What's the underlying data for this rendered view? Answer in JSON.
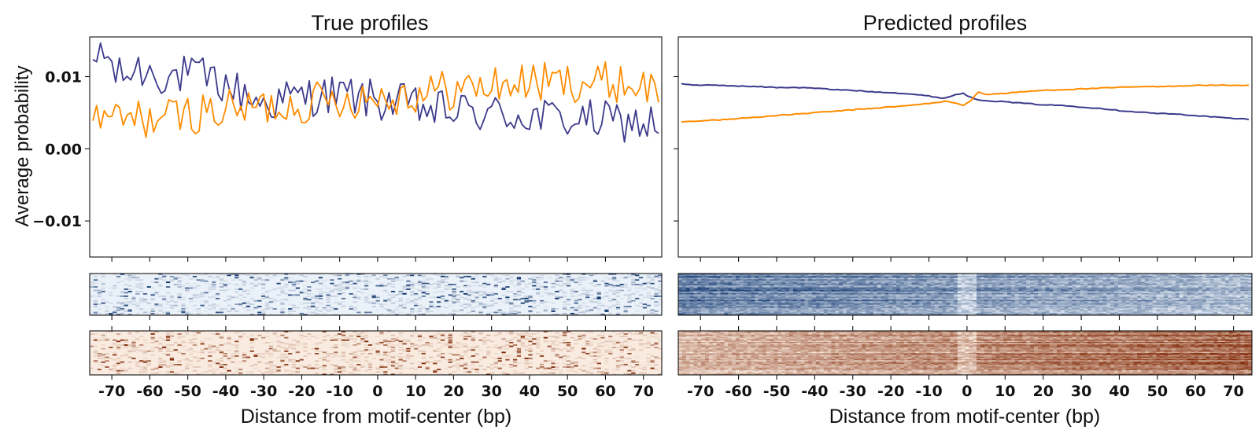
{
  "chart_data": {
    "type": "line",
    "ylabel": "Average probability",
    "xlabel": "Distance from motif-center (bp)",
    "x_range": [
      -75,
      74
    ],
    "ylim": [
      -0.015,
      0.0155
    ],
    "yticks": [
      0.01,
      0.0,
      -0.01
    ],
    "ytick_labels": [
      "0.01",
      "0.00",
      "−0.01"
    ],
    "xticks": [
      -70,
      -60,
      -50,
      -40,
      -30,
      -20,
      -10,
      0,
      10,
      20,
      30,
      40,
      50,
      60,
      70
    ],
    "xtick_labels": [
      "-70",
      "-60",
      "-50",
      "-40",
      "-30",
      "-20",
      "-10",
      "0",
      "10",
      "20",
      "30",
      "40",
      "50",
      "60",
      "70"
    ],
    "colors": {
      "series_blue": "#3d3a8c",
      "series_orange": "#ff8c00",
      "heatmap_blue": "#08306b",
      "heatmap_orange": "#7f2704"
    },
    "panels": [
      {
        "title": "True profiles",
        "series": [
          {
            "name": "blue strand",
            "color": "#3d3a8c",
            "anchors": [
              [
                -75,
                0.0098
              ],
              [
                -73,
                0.0143
              ],
              [
                -71,
                0.0122
              ],
              [
                -68,
                0.0098
              ],
              [
                -64,
                0.011
              ],
              [
                -60,
                0.0108
              ],
              [
                -55,
                0.01
              ],
              [
                -50,
                0.0102
              ],
              [
                -45,
                0.0098
              ],
              [
                -41,
                0.009
              ],
              [
                -38,
                0.0083
              ],
              [
                -35,
                0.0075
              ],
              [
                -30,
                0.0063
              ],
              [
                -25,
                0.0068
              ],
              [
                -20,
                0.0072
              ],
              [
                -15,
                0.0075
              ],
              [
                -10,
                0.0074
              ],
              [
                -5,
                0.0072
              ],
              [
                0,
                0.0066
              ],
              [
                5,
                0.0064
              ],
              [
                10,
                0.0058
              ],
              [
                15,
                0.0052
              ],
              [
                20,
                0.0052
              ],
              [
                25,
                0.005
              ],
              [
                30,
                0.0048
              ],
              [
                35,
                0.0047
              ],
              [
                40,
                0.0045
              ],
              [
                45,
                0.0043
              ],
              [
                50,
                0.0041
              ],
              [
                55,
                0.004
              ],
              [
                60,
                0.0038
              ],
              [
                65,
                0.0037
              ],
              [
                70,
                0.0035
              ],
              [
                74,
                0.0034
              ]
            ]
          },
          {
            "name": "orange strand",
            "color": "#ff8c00",
            "anchors": [
              [
                -75,
                0.0038
              ],
              [
                -70,
                0.004
              ],
              [
                -65,
                0.004
              ],
              [
                -60,
                0.0042
              ],
              [
                -55,
                0.0043
              ],
              [
                -50,
                0.0048
              ],
              [
                -45,
                0.0052
              ],
              [
                -40,
                0.0053
              ],
              [
                -35,
                0.0055
              ],
              [
                -30,
                0.0058
              ],
              [
                -25,
                0.006
              ],
              [
                -20,
                0.0063
              ],
              [
                -15,
                0.0066
              ],
              [
                -10,
                0.0069
              ],
              [
                -5,
                0.0071
              ],
              [
                0,
                0.0072
              ],
              [
                5,
                0.0075
              ],
              [
                10,
                0.0077
              ],
              [
                15,
                0.008
              ],
              [
                20,
                0.0082
              ],
              [
                25,
                0.0084
              ],
              [
                30,
                0.0088
              ],
              [
                35,
                0.009
              ],
              [
                40,
                0.0092
              ],
              [
                45,
                0.0092
              ],
              [
                50,
                0.0093
              ],
              [
                55,
                0.0093
              ],
              [
                60,
                0.0092
              ],
              [
                65,
                0.0091
              ],
              [
                70,
                0.0088
              ],
              [
                74,
                0.008
              ]
            ]
          }
        ]
      },
      {
        "title": "Predicted profiles",
        "series": [
          {
            "name": "blue strand",
            "color": "#3d3a8c",
            "anchors": [
              [
                -75,
                0.009
              ],
              [
                -70,
                0.0088
              ],
              [
                -65,
                0.0088
              ],
              [
                -60,
                0.0087
              ],
              [
                -55,
                0.0086
              ],
              [
                -50,
                0.0085
              ],
              [
                -45,
                0.0085
              ],
              [
                -40,
                0.0084
              ],
              [
                -35,
                0.0082
              ],
              [
                -30,
                0.0081
              ],
              [
                -25,
                0.0079
              ],
              [
                -20,
                0.0078
              ],
              [
                -15,
                0.0076
              ],
              [
                -10,
                0.0073
              ],
              [
                -6,
                0.007
              ],
              [
                -3,
                0.0075
              ],
              [
                -1,
                0.0077
              ],
              [
                1,
                0.0071
              ],
              [
                3,
                0.0068
              ],
              [
                5,
                0.0067
              ],
              [
                10,
                0.0065
              ],
              [
                15,
                0.0063
              ],
              [
                20,
                0.0061
              ],
              [
                25,
                0.006
              ],
              [
                30,
                0.0058
              ],
              [
                35,
                0.0056
              ],
              [
                40,
                0.0053
              ],
              [
                45,
                0.0051
              ],
              [
                50,
                0.0049
              ],
              [
                55,
                0.0048
              ],
              [
                60,
                0.0046
              ],
              [
                65,
                0.0044
              ],
              [
                70,
                0.0042
              ],
              [
                74,
                0.0041
              ]
            ]
          },
          {
            "name": "orange strand",
            "color": "#ff8c00",
            "anchors": [
              [
                -75,
                0.0037
              ],
              [
                -70,
                0.0039
              ],
              [
                -65,
                0.004
              ],
              [
                -60,
                0.0042
              ],
              [
                -55,
                0.0044
              ],
              [
                -50,
                0.0046
              ],
              [
                -45,
                0.0048
              ],
              [
                -40,
                0.005
              ],
              [
                -35,
                0.0052
              ],
              [
                -30,
                0.0054
              ],
              [
                -25,
                0.0056
              ],
              [
                -20,
                0.0058
              ],
              [
                -15,
                0.006
              ],
              [
                -10,
                0.0063
              ],
              [
                -5,
                0.0066
              ],
              [
                -3,
                0.0063
              ],
              [
                -1,
                0.006
              ],
              [
                1,
                0.0067
              ],
              [
                3,
                0.0079
              ],
              [
                5,
                0.0075
              ],
              [
                10,
                0.0077
              ],
              [
                15,
                0.0079
              ],
              [
                20,
                0.0081
              ],
              [
                25,
                0.0082
              ],
              [
                30,
                0.0083
              ],
              [
                35,
                0.0084
              ],
              [
                40,
                0.0085
              ],
              [
                45,
                0.0086
              ],
              [
                50,
                0.0086
              ],
              [
                55,
                0.0087
              ],
              [
                60,
                0.0088
              ],
              [
                65,
                0.0088
              ],
              [
                70,
                0.0088
              ],
              [
                74,
                0.0088
              ]
            ]
          }
        ]
      }
    ],
    "heatmaps": [
      {
        "panel": "True profiles",
        "strand": "blue",
        "style": "sparse",
        "rows": 36,
        "cols": 150
      },
      {
        "panel": "True profiles",
        "strand": "orange",
        "style": "sparse",
        "rows": 36,
        "cols": 150
      },
      {
        "panel": "Predicted profiles",
        "strand": "blue",
        "style": "dense",
        "rows": 36,
        "cols": 150
      },
      {
        "panel": "Predicted profiles",
        "strand": "orange",
        "style": "dense",
        "rows": 36,
        "cols": 150
      }
    ]
  }
}
